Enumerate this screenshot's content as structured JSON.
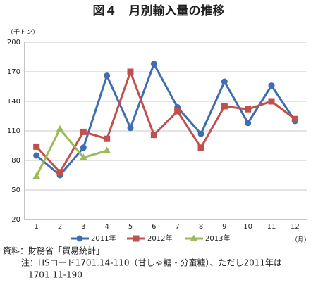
{
  "chart_data": {
    "type": "line",
    "title": "図４　月別輸入量の推移",
    "y_label": "（千トン）",
    "x_label": "（月）",
    "categories": [
      "1",
      "2",
      "3",
      "4",
      "5",
      "6",
      "7",
      "8",
      "9",
      "10",
      "11",
      "12"
    ],
    "series": [
      {
        "name": "2011年",
        "color": "#3e6db0",
        "marker": "circle",
        "values": [
          85,
          65,
          93,
          166,
          113,
          178,
          134,
          107,
          160,
          118,
          156,
          120
        ]
      },
      {
        "name": "2012年",
        "color": "#c0504d",
        "marker": "square",
        "values": [
          94,
          68,
          109,
          102,
          170,
          106,
          130,
          93,
          135,
          132,
          140,
          122
        ]
      },
      {
        "name": "2013年",
        "color": "#9bbb59",
        "marker": "triangle",
        "values": [
          64,
          112,
          83,
          90,
          null,
          null,
          null,
          null,
          null,
          null,
          null,
          null
        ]
      }
    ],
    "ylim": [
      20,
      200
    ],
    "yticks": [
      20,
      50,
      80,
      110,
      140,
      170,
      200
    ],
    "grid": true,
    "notes": [
      "資料：財務省「貿易統計」",
      "注：HSコード1701.14-110（甘しゃ糖・分蜜糖）、ただし2011年は",
      "1701.11-190"
    ]
  }
}
